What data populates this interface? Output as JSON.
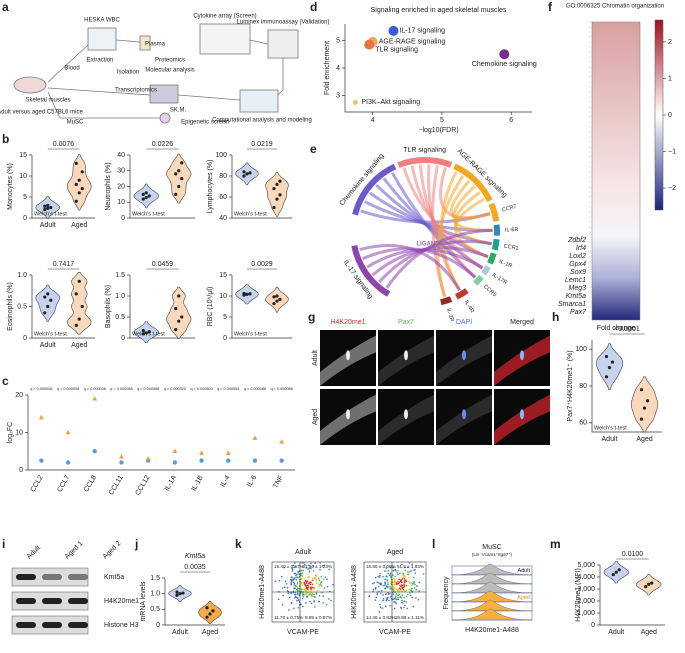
{
  "panel_labels": [
    "a",
    "b",
    "c",
    "d",
    "e",
    "f",
    "g",
    "h",
    "i",
    "j",
    "k",
    "l",
    "m"
  ],
  "schematic": {
    "texts": [
      "HESKA WBC",
      "Blood",
      "Extraction",
      "Isolation",
      "Plasma",
      "Proteomics",
      "Molecular analysis",
      "Cytokine array (Screen)",
      "Luminex immunoassay (Validation)",
      "Adult versus aged C57BL6 mice",
      "Skeletal muscles",
      "Transcriptomics",
      "SK.M.",
      "MuSC",
      "Epigenetic screen",
      "Computational analysis and modeling"
    ]
  },
  "chart_data": [
    {
      "type": "violin",
      "ylabel": "Monocytes (%)",
      "categories": [
        "Adult",
        "Aged"
      ],
      "colors": [
        "#c5d3ee",
        "#f8d9bb"
      ],
      "values": [
        [
          2,
          2.3,
          2.5,
          2.8,
          3
        ],
        [
          4,
          6,
          7,
          8,
          9,
          11,
          13
        ]
      ],
      "ylim": [
        0,
        15
      ],
      "yticks": [
        0,
        5,
        10,
        15
      ],
      "pvalue": "0.0076",
      "test": "Welch's t-test"
    },
    {
      "type": "violin",
      "ylabel": "Neutrophils (%)",
      "colors": [
        "#c5d3ee",
        "#f8d9bb"
      ],
      "values": [
        [
          12,
          13,
          14,
          15,
          16
        ],
        [
          15,
          20,
          25,
          28,
          30,
          35
        ]
      ],
      "ylim": [
        0,
        40
      ],
      "yticks": [
        0,
        10,
        20,
        30,
        40
      ],
      "pvalue": "0.0226",
      "test": "Welch's t-test"
    },
    {
      "type": "violin",
      "ylabel": "Lymphocytes (%)",
      "colors": [
        "#c5d3ee",
        "#f8d9bb"
      ],
      "values": [
        [
          80,
          82,
          83,
          84
        ],
        [
          50,
          58,
          62,
          68,
          72,
          75
        ]
      ],
      "ylim": [
        40,
        100
      ],
      "yticks": [
        40,
        60,
        80,
        100
      ],
      "pvalue": "0.0219",
      "test": "Welch's t-test"
    },
    {
      "type": "violin",
      "ylabel": "Eosinophils (%)",
      "categories": [
        "Adult",
        "Aged"
      ],
      "colors": [
        "#c5d3ee",
        "#f8d9bb"
      ],
      "values": [
        [
          0.4,
          0.5,
          0.6,
          0.65,
          0.7
        ],
        [
          0.2,
          0.3,
          0.5,
          0.7,
          0.9
        ]
      ],
      "ylim": [
        0,
        1
      ],
      "yticks": [
        0,
        0.5,
        {
          "value": 1,
          "label": "1.0"
        }
      ],
      "pvalue": "0.7417",
      "test": "Welch's t-test"
    },
    {
      "type": "violin",
      "ylabel": "Basophils (%)",
      "colors": [
        "#c5d3ee",
        "#f8d9bb"
      ],
      "values": [
        [
          0.1,
          0.12,
          0.15,
          0.18
        ],
        [
          0.2,
          0.4,
          0.5,
          0.7,
          1.0
        ]
      ],
      "ylim": [
        0,
        1.5
      ],
      "yticks": [
        0,
        0.5,
        {
          "value": 1,
          "label": "1.0"
        },
        1.5
      ],
      "pvalue": "0.0459",
      "test": "Welch's t-test"
    },
    {
      "type": "violin",
      "ylabel": "RBC (10⁶/µl)",
      "colors": [
        "#c5d3ee",
        "#f8d9bb"
      ],
      "values": [
        [
          10.2,
          10.4,
          10.5,
          10.6
        ],
        [
          8.2,
          8.8,
          9.2,
          9.8,
          10
        ]
      ],
      "ylim": [
        0,
        15
      ],
      "yticks": [
        0,
        5,
        10,
        15
      ],
      "pvalue": "0.0029",
      "test": "Welch's t-test"
    },
    {
      "type": "dot",
      "ylabel": "log₂FC",
      "categories": [
        "CCL2",
        "CCL7",
        "CCL8",
        "CCL11",
        "CCL12",
        "IL-1A",
        "IL-1B",
        "IL-4",
        "IL-6",
        "TNF"
      ],
      "series": [
        {
          "color": "#5b9bd5",
          "values": [
            2.5,
            2,
            5,
            2,
            2.5,
            2,
            2.5,
            2.5,
            2.5,
            2.5
          ]
        },
        {
          "color": "#f39c34",
          "values": [
            14,
            10,
            19,
            3.5,
            3,
            5,
            4.5,
            4.5,
            8.5,
            7.5
          ]
        }
      ],
      "ylim": [
        0,
        20
      ],
      "yticks": [
        0,
        10,
        20
      ],
      "annotations": [
        "q = 0.000008",
        "q = 0.000008",
        "q = 0.000008",
        "q = 0.000088",
        "q = 0.000088",
        "q = 0.000325",
        "q = 0.000803",
        "q = 0.000954",
        "q = 0.000088",
        "q = 0.000088"
      ]
    },
    {
      "type": "scatter",
      "title": "Signaling enriched in aged skeletal muscles",
      "xlabel": "−log10(FDR)",
      "ylabel": "Fold enrichement",
      "labels": [
        "IL-17 signaling",
        "AGE-RAGE signaling",
        "TLR signaling",
        "Chemokine signaling",
        "PI3K–Akt signaling"
      ],
      "colors": [
        "#3b5bdb",
        "#f4a261",
        "#e8743b",
        "#7b2d8e",
        "#e9c46a"
      ],
      "x": [
        4.3,
        4.0,
        3.95,
        5.9,
        3.75
      ],
      "values": [
        5.35,
        4.95,
        4.85,
        4.5,
        2.75
      ],
      "xlim": [
        3.6,
        6.3
      ],
      "xticks": [
        4,
        5,
        6
      ],
      "ylim": [
        2.4,
        5.6
      ],
      "yticks": [
        3,
        4,
        5
      ]
    },
    {
      "type": "violin",
      "ylabel": "Pax7⁺H4K20me1⁺ (%)",
      "categories": [
        "Adult",
        "Aged"
      ],
      "colors": [
        "#c5d3ee",
        "#f8d9bb"
      ],
      "values": [
        [
          85,
          90,
          93,
          96
        ],
        [
          62,
          68,
          72,
          78
        ]
      ],
      "ylim": [
        55,
        105
      ],
      "yticks": [
        60,
        80,
        100
      ],
      "pvalue": "<0.0001",
      "test": "Welch's t-test"
    },
    {
      "type": "violin",
      "title": "Kmt5a",
      "ylabel": "mRNA levels",
      "categories": [
        "Adult",
        "Aged"
      ],
      "colors": [
        "#c5d3ee",
        "#f8a94a"
      ],
      "values": [
        [
          0.95,
          1.0,
          1.02,
          1.05
        ],
        [
          0.25,
          0.35,
          0.45,
          0.55
        ]
      ],
      "ylim": [
        0,
        1.5
      ],
      "yticks": [
        0,
        0.5,
        {
          "value": 1,
          "label": "1.0"
        },
        1.5
      ],
      "pvalue": "0.0035"
    },
    {
      "type": "violin",
      "ylabel": "H4K20me1 (MFI)",
      "categories": [
        "Adult",
        "Aged"
      ],
      "colors": [
        "#c5d3ee",
        "#f8d9bb"
      ],
      "values": [
        [
          4200,
          4400,
          4600
        ],
        [
          3200,
          3400,
          3500
        ]
      ],
      "ylim": [
        0,
        5000
      ],
      "yticks": [
        0,
        {
          "value": 1000,
          "label": "1,000"
        },
        {
          "value": 2000,
          "label": "2,000"
        },
        {
          "value": 3000,
          "label": "3,000"
        },
        {
          "value": 4000,
          "label": "4,000"
        },
        {
          "value": 5000,
          "label": "5,000"
        }
      ],
      "pvalue": "0.0100"
    }
  ],
  "chord": {
    "pathways": [
      "Chemokine signaling",
      "TLR signaling",
      "AGE-RAGE signaling",
      "IL-17 signaling"
    ],
    "receptors": [
      "CCR7",
      "IL-6R",
      "CCR1",
      "IL-1R",
      "IL-17R",
      "CCR5",
      "IL-4R",
      "IL-2R"
    ],
    "center": "LIGANDS"
  },
  "heatmap": {
    "title": "GO:0006325 Chromatin organization",
    "genes": [
      "Zdbf2",
      "Irf4",
      "Loxl2",
      "Gpx4",
      "Sox9",
      "Lemc1",
      "Meg3",
      "Kmt5a",
      "Smarca1",
      "Pax7"
    ],
    "xlabel": "Fold change",
    "ticks": [
      {
        "value": -2,
        "label": "−2"
      },
      {
        "value": -1,
        "label": "−1"
      },
      0,
      1,
      2
    ],
    "lim": [
      -2.6,
      2.6
    ]
  },
  "images": {
    "columns": [
      "H4K20me1",
      "Pax7",
      "DAPI",
      "Merged"
    ],
    "rows": [
      "Adult",
      "Aged"
    ]
  },
  "western": {
    "lanes": [
      "Adult",
      "Aged 1",
      "Aged 2"
    ],
    "bands": [
      "Kmt5a",
      "H4K20me1",
      "Histone H3"
    ]
  },
  "flow": {
    "ylabel": "H4K20me1-A488",
    "xlabel": "VCAM-PE",
    "panels": [
      {
        "title": "Adult",
        "quadrants": [
          "16.40 ± 0.47%",
          "61.96 ± 1.23%",
          "11.70 ± 0.75%",
          "9.95 ± 0.87%"
        ]
      },
      {
        "title": "Aged",
        "quadrants": [
          "16.86 ± 0.08%",
          "51.8 ± 1.93%",
          "14.46 ± 0.82%",
          "19.88 ± 1.11%"
        ]
      }
    ]
  },
  "histogram": {
    "title": "MuSC",
    "subtitle": "(Lin⁻Vcam1⁺Itga7⁺)",
    "ylabel": "Frequency",
    "xlabel": "H4K20me1-A488",
    "groups": [
      "Adult",
      "Aged"
    ]
  }
}
